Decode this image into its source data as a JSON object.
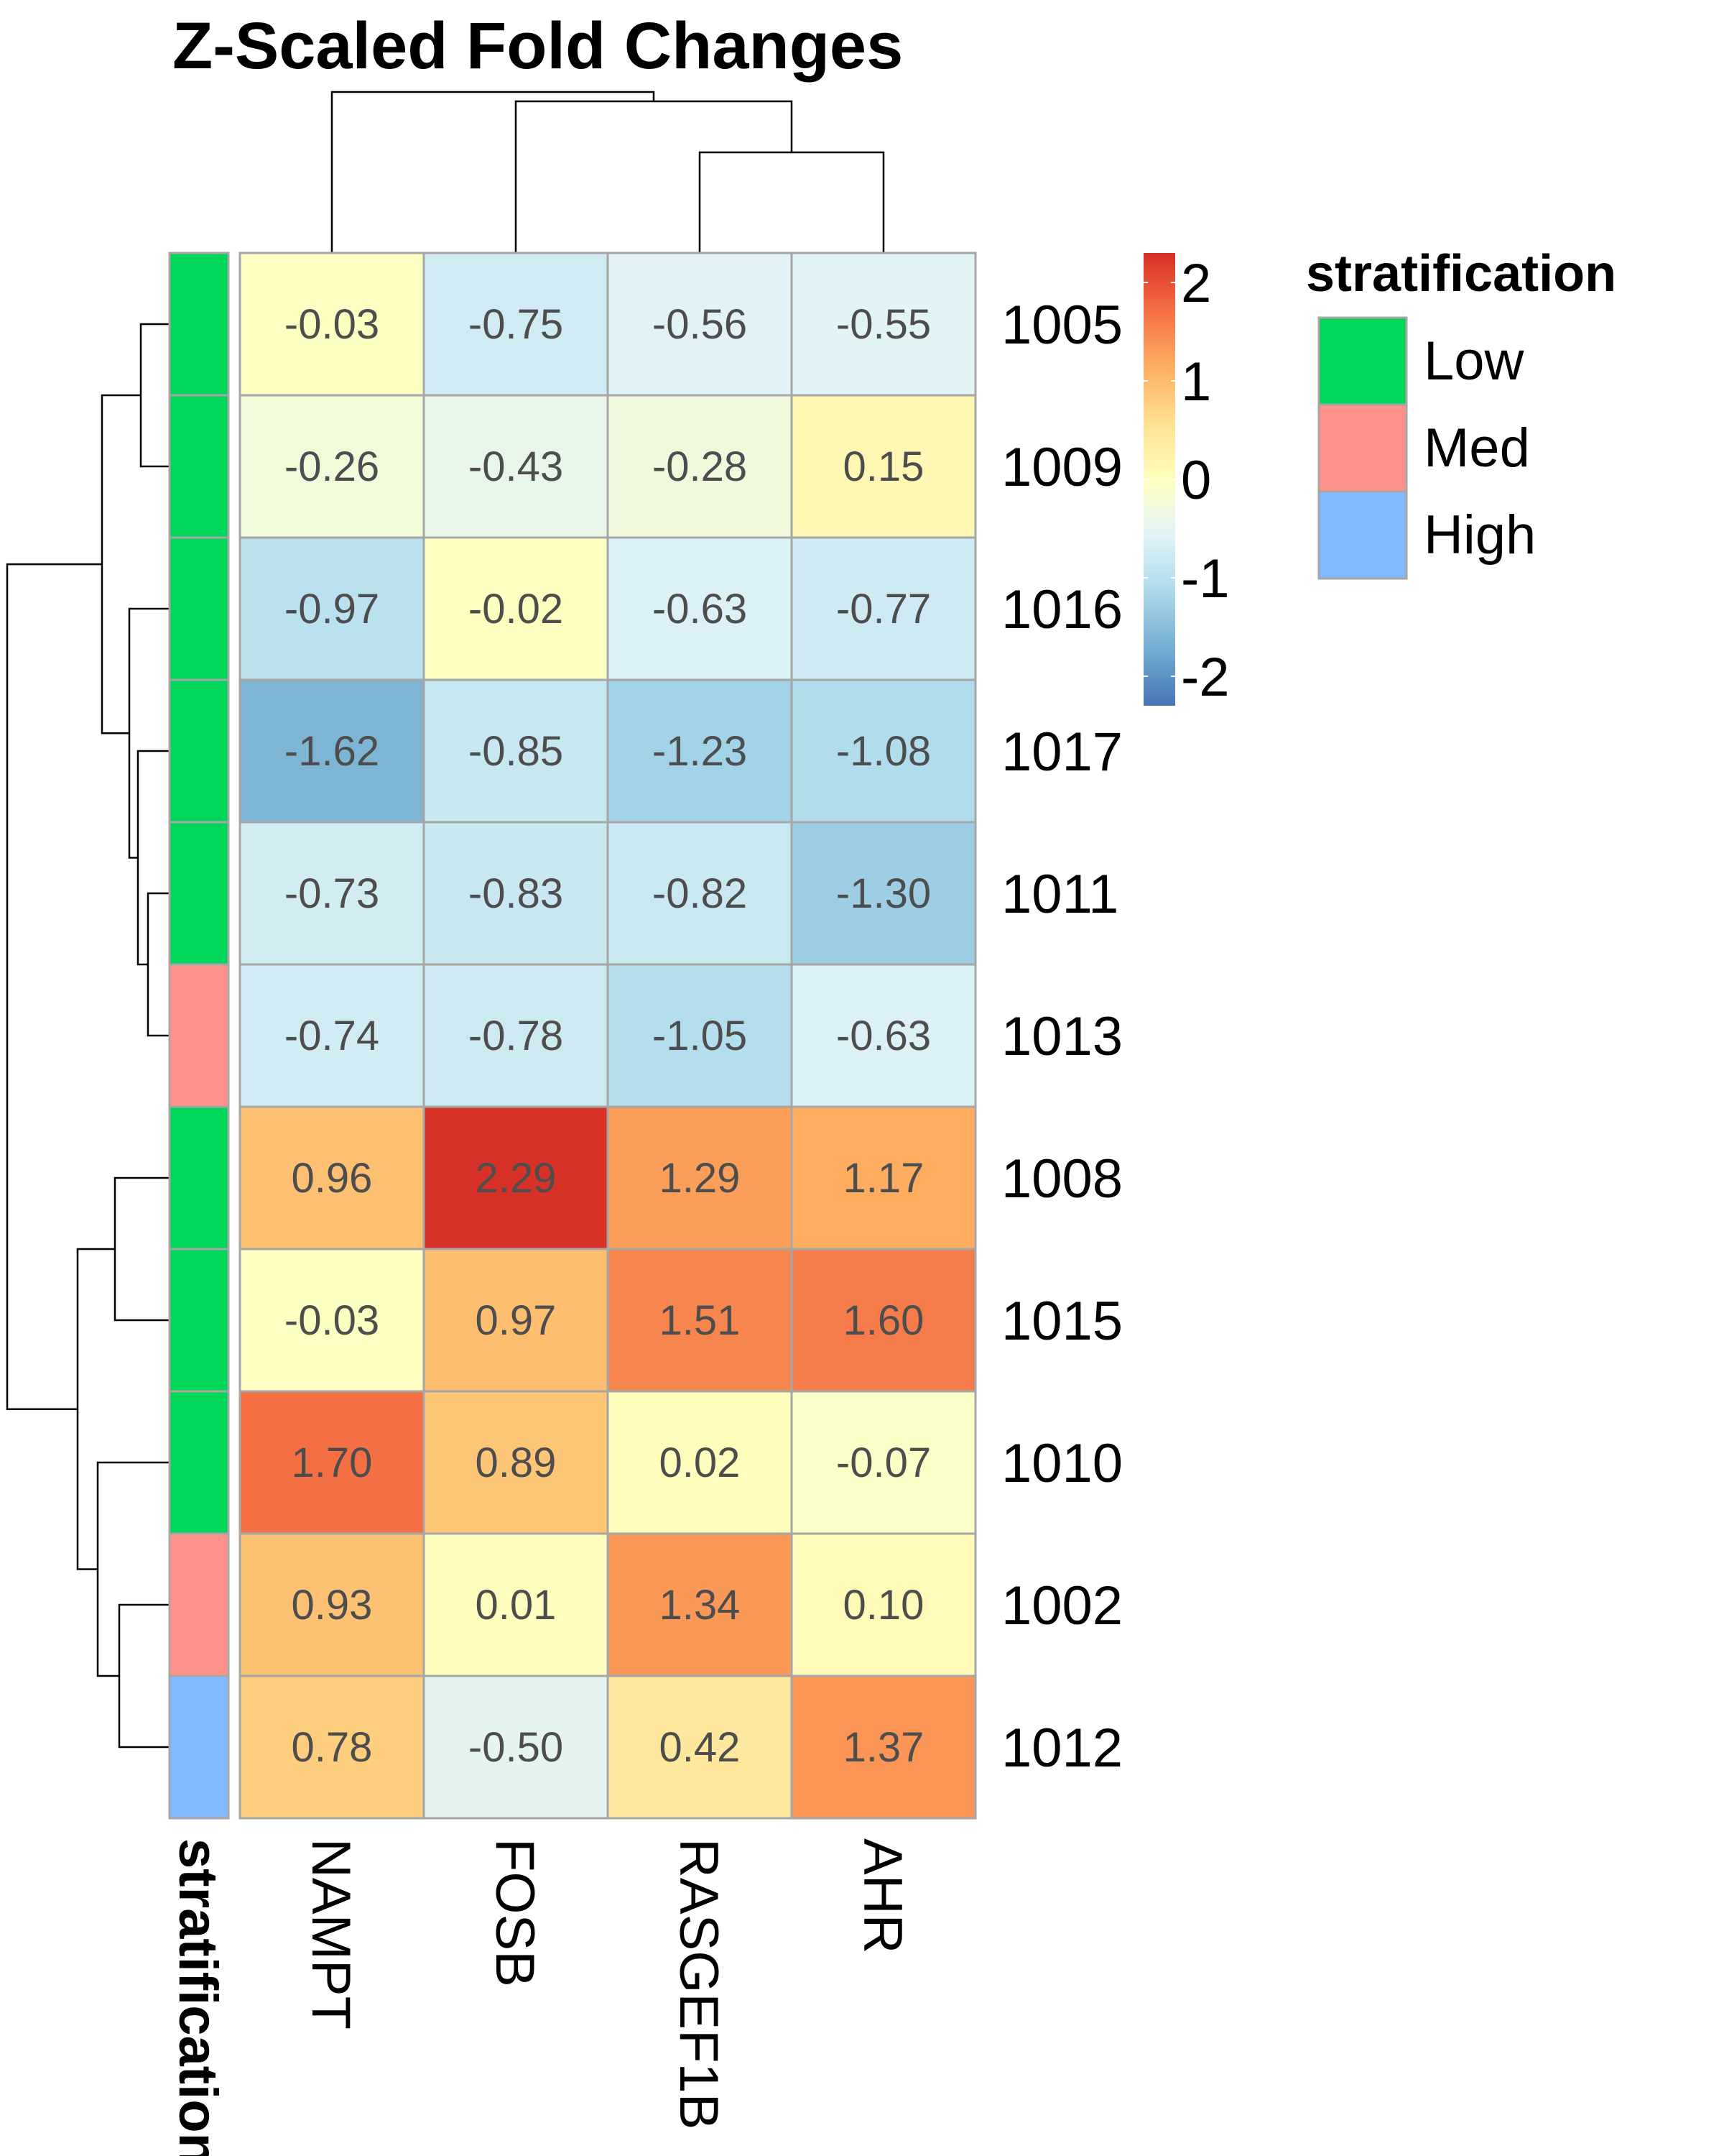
{
  "chart_data": {
    "type": "heatmap",
    "title": "Z-Scaled Fold Changes",
    "columns": [
      "NAMPT",
      "FOSB",
      "RASGEF1B",
      "AHR"
    ],
    "rows": [
      "1005",
      "1009",
      "1016",
      "1017",
      "1011",
      "1013",
      "1008",
      "1015",
      "1010",
      "1002",
      "1012"
    ],
    "values": [
      [
        -0.03,
        -0.75,
        -0.56,
        -0.55
      ],
      [
        -0.26,
        -0.43,
        -0.28,
        0.15
      ],
      [
        -0.97,
        -0.02,
        -0.63,
        -0.77
      ],
      [
        -1.62,
        -0.85,
        -1.23,
        -1.08
      ],
      [
        -0.73,
        -0.83,
        -0.82,
        -1.3
      ],
      [
        -0.74,
        -0.78,
        -1.05,
        -0.63
      ],
      [
        0.96,
        2.29,
        1.29,
        1.17
      ],
      [
        -0.03,
        0.97,
        1.51,
        1.6
      ],
      [
        1.7,
        0.89,
        0.02,
        -0.07
      ],
      [
        0.93,
        0.01,
        1.34,
        0.1
      ],
      [
        0.78,
        -0.5,
        0.42,
        1.37
      ]
    ],
    "value_labels": [
      [
        "-0.03",
        "-0.75",
        "-0.56",
        "-0.55"
      ],
      [
        "-0.26",
        "-0.43",
        "-0.28",
        "0.15"
      ],
      [
        "-0.97",
        "-0.02",
        "-0.63",
        "-0.77"
      ],
      [
        "-1.62",
        "-0.85",
        "-1.23",
        "-1.08"
      ],
      [
        "-0.73",
        "-0.83",
        "-0.82",
        "-1.30"
      ],
      [
        "-0.74",
        "-0.78",
        "-1.05",
        "-0.63"
      ],
      [
        "0.96",
        "2.29",
        "1.29",
        "1.17"
      ],
      [
        "-0.03",
        "0.97",
        "1.51",
        "1.60"
      ],
      [
        "1.70",
        "0.89",
        "0.02",
        "-0.07"
      ],
      [
        "0.93",
        "0.01",
        "1.34",
        "0.10"
      ],
      [
        "0.78",
        "-0.50",
        "0.42",
        "1.37"
      ]
    ],
    "annotation": {
      "name": "stratification",
      "row_values": [
        "Low",
        "Low",
        "Low",
        "Low",
        "Low",
        "Med",
        "Low",
        "Low",
        "Low",
        "Med",
        "High"
      ],
      "levels": [
        "Low",
        "Med",
        "High"
      ],
      "colors": {
        "Low": "#00d65a",
        "Med": "#ff928a",
        "High": "#84b8ff"
      }
    },
    "colorbar": {
      "range": [
        -2.3,
        2.3
      ],
      "ticks": [
        2,
        1,
        0,
        -1,
        -2
      ],
      "tick_labels": [
        "2",
        "1",
        "0",
        "-1",
        "-2"
      ],
      "colors": [
        "#4575b4",
        "#74add1",
        "#abd9e9",
        "#e0f3f8",
        "#ffffbf",
        "#fee090",
        "#fdae61",
        "#f46d43",
        "#d73027"
      ]
    },
    "row_dendrogram": true,
    "column_dendrogram": true,
    "legend_position": "right"
  }
}
